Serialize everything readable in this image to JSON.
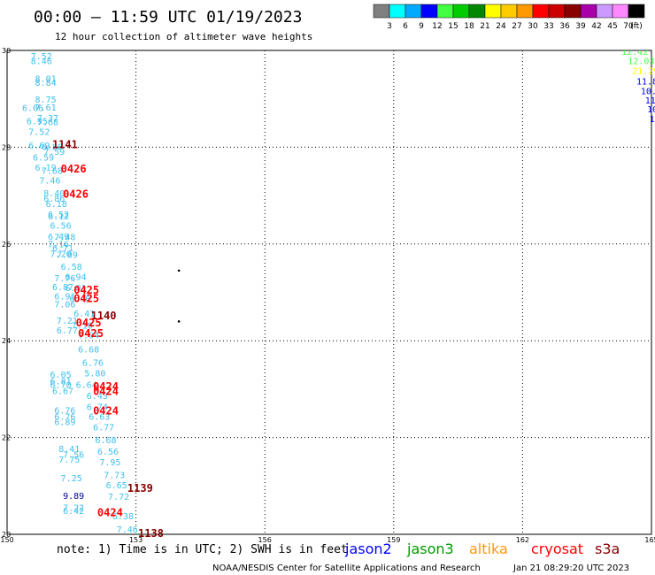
{
  "header": {
    "title": "00:00 — 11:59 UTC 01/19/2023",
    "subtitle": "12 hour collection of altimeter wave heights"
  },
  "colorbar": {
    "colors": [
      "#808080",
      "#00ffff",
      "#00aaff",
      "#0000ff",
      "#44ff44",
      "#00cc00",
      "#008800",
      "#ffff00",
      "#ffcc00",
      "#ff9900",
      "#ff0000",
      "#cc0000",
      "#880000",
      "#aa00aa",
      "#cc99ff",
      "#ff88ff",
      "#000000"
    ],
    "labels": [
      "3",
      "6",
      "9",
      "12",
      "15",
      "18",
      "21",
      "24",
      "27",
      "30",
      "33",
      "36",
      "39",
      "42",
      "45",
      "70",
      "(ft)"
    ]
  },
  "chart_data": {
    "type": "scatter",
    "x_range": [
      150,
      165
    ],
    "y_range": [
      20,
      30
    ],
    "x_ticks": [
      150,
      153,
      156,
      159,
      162,
      165
    ],
    "y_ticks": [
      20,
      22,
      24,
      26,
      28,
      30
    ],
    "x_tick_labels": [
      "150",
      "153",
      "156",
      "159",
      "162",
      "165"
    ],
    "y_tick_labels": [
      "20",
      "22",
      "24",
      "26",
      "28",
      "30"
    ],
    "grid": true,
    "wave_labels": [
      {
        "x": 150.55,
        "y": 29.89,
        "text": "7.52",
        "color": "#3fc0ef"
      },
      {
        "x": 150.55,
        "y": 29.79,
        "text": "8.46",
        "color": "#3fc0ef"
      },
      {
        "x": 150.65,
        "y": 29.42,
        "text": "8.01",
        "color": "#3fc0ef"
      },
      {
        "x": 150.65,
        "y": 29.34,
        "text": "8.84",
        "color": "#3fc0ef"
      },
      {
        "x": 150.65,
        "y": 28.99,
        "text": "8.75",
        "color": "#3fc0ef"
      },
      {
        "x": 150.35,
        "y": 28.82,
        "text": "6.06",
        "color": "#3fc0ef"
      },
      {
        "x": 150.65,
        "y": 28.83,
        "text": "7.61",
        "color": "#3fc0ef"
      },
      {
        "x": 150.7,
        "y": 28.61,
        "text": "7.37",
        "color": "#3fc0ef"
      },
      {
        "x": 150.45,
        "y": 28.55,
        "text": "6.95",
        "color": "#3fc0ef"
      },
      {
        "x": 150.7,
        "y": 28.53,
        "text": "7.68",
        "color": "#3fc0ef"
      },
      {
        "x": 150.5,
        "y": 28.33,
        "text": "7.52",
        "color": "#3fc0ef"
      },
      {
        "x": 150.5,
        "y": 28.04,
        "text": "6.69",
        "color": "#3fc0ef"
      },
      {
        "x": 150.8,
        "y": 28.02,
        "text": "6.86",
        "color": "#3fc0ef"
      },
      {
        "x": 150.6,
        "y": 27.8,
        "text": "6.59",
        "color": "#3fc0ef"
      },
      {
        "x": 150.85,
        "y": 27.92,
        "text": "7.59",
        "color": "#3fc0ef"
      },
      {
        "x": 150.65,
        "y": 27.59,
        "text": "6.19",
        "color": "#3fc0ef"
      },
      {
        "x": 150.8,
        "y": 27.52,
        "text": "7.68",
        "color": "#3fc0ef"
      },
      {
        "x": 150.75,
        "y": 27.32,
        "text": "7.46",
        "color": "#3fc0ef"
      },
      {
        "x": 150.85,
        "y": 27.06,
        "text": "8.40",
        "color": "#3fc0ef"
      },
      {
        "x": 150.85,
        "y": 26.95,
        "text": "6.86",
        "color": "#3fc0ef"
      },
      {
        "x": 150.9,
        "y": 26.84,
        "text": "6.18",
        "color": "#3fc0ef"
      },
      {
        "x": 150.95,
        "y": 26.62,
        "text": "6.52",
        "color": "#3fc0ef"
      },
      {
        "x": 150.95,
        "y": 26.58,
        "text": "6.12",
        "color": "#3fc0ef"
      },
      {
        "x": 151.0,
        "y": 26.39,
        "text": "6.56",
        "color": "#3fc0ef"
      },
      {
        "x": 150.95,
        "y": 26.16,
        "text": "6.49",
        "color": "#3fc0ef"
      },
      {
        "x": 151.1,
        "y": 26.15,
        "text": "7.48",
        "color": "#3fc0ef"
      },
      {
        "x": 150.95,
        "y": 26.01,
        "text": "7.16",
        "color": "#3fc0ef"
      },
      {
        "x": 151.05,
        "y": 25.92,
        "text": "6.71",
        "color": "#3fc0ef"
      },
      {
        "x": 151.0,
        "y": 25.8,
        "text": "7.20",
        "color": "#3fc0ef"
      },
      {
        "x": 151.15,
        "y": 25.79,
        "text": "7.09",
        "color": "#3fc0ef"
      },
      {
        "x": 151.25,
        "y": 25.54,
        "text": "6.58",
        "color": "#3fc0ef"
      },
      {
        "x": 151.1,
        "y": 25.3,
        "text": "7.76",
        "color": "#3fc0ef"
      },
      {
        "x": 151.35,
        "y": 25.33,
        "text": "6.94",
        "color": "#3fc0ef"
      },
      {
        "x": 151.05,
        "y": 25.12,
        "text": "6.87",
        "color": "#3fc0ef"
      },
      {
        "x": 151.35,
        "y": 25.1,
        "text": "6.91",
        "color": "#3fc0ef"
      },
      {
        "x": 151.1,
        "y": 24.93,
        "text": "6.91",
        "color": "#3fc0ef"
      },
      {
        "x": 151.45,
        "y": 24.88,
        "text": "6.40",
        "color": "#3fc0ef"
      },
      {
        "x": 151.1,
        "y": 24.76,
        "text": "7.06",
        "color": "#3fc0ef"
      },
      {
        "x": 151.55,
        "y": 24.57,
        "text": "6.41",
        "color": "#3fc0ef"
      },
      {
        "x": 151.15,
        "y": 24.42,
        "text": "7.21",
        "color": "#3fc0ef"
      },
      {
        "x": 151.5,
        "y": 24.32,
        "text": "7.10",
        "color": "#3fc0ef"
      },
      {
        "x": 151.15,
        "y": 24.22,
        "text": "6.77",
        "color": "#3fc0ef"
      },
      {
        "x": 151.65,
        "y": 24.12,
        "text": "7.04",
        "color": "#3fc0ef"
      },
      {
        "x": 151.65,
        "y": 23.83,
        "text": "6.68",
        "color": "#3fc0ef"
      },
      {
        "x": 151.75,
        "y": 23.56,
        "text": "6.76",
        "color": "#3fc0ef"
      },
      {
        "x": 151.0,
        "y": 23.31,
        "text": "6.05",
        "color": "#3fc0ef"
      },
      {
        "x": 151.8,
        "y": 23.34,
        "text": "5.80",
        "color": "#3fc0ef"
      },
      {
        "x": 151.0,
        "y": 23.17,
        "text": "6.81",
        "color": "#3fc0ef"
      },
      {
        "x": 151.0,
        "y": 23.1,
        "text": "6.70",
        "color": "#3fc0ef"
      },
      {
        "x": 151.6,
        "y": 23.1,
        "text": "6.64",
        "color": "#3fc0ef"
      },
      {
        "x": 151.05,
        "y": 22.97,
        "text": "6.67",
        "color": "#3fc0ef"
      },
      {
        "x": 151.85,
        "y": 22.87,
        "text": "6.43",
        "color": "#3fc0ef"
      },
      {
        "x": 151.85,
        "y": 22.64,
        "text": "6.74",
        "color": "#3fc0ef"
      },
      {
        "x": 151.1,
        "y": 22.57,
        "text": "6.76",
        "color": "#3fc0ef"
      },
      {
        "x": 151.1,
        "y": 22.44,
        "text": "6.76",
        "color": "#3fc0ef"
      },
      {
        "x": 151.9,
        "y": 22.44,
        "text": "6.63",
        "color": "#3fc0ef"
      },
      {
        "x": 151.1,
        "y": 22.33,
        "text": "6.89",
        "color": "#3fc0ef"
      },
      {
        "x": 152.0,
        "y": 22.22,
        "text": "6.77",
        "color": "#3fc0ef"
      },
      {
        "x": 152.05,
        "y": 21.96,
        "text": "6.68",
        "color": "#3fc0ef"
      },
      {
        "x": 151.2,
        "y": 21.77,
        "text": "8.41",
        "color": "#3fc0ef"
      },
      {
        "x": 152.1,
        "y": 21.72,
        "text": "6.56",
        "color": "#3fc0ef"
      },
      {
        "x": 151.3,
        "y": 21.65,
        "text": "7.56",
        "color": "#3fc0ef"
      },
      {
        "x": 151.2,
        "y": 21.55,
        "text": "7.75",
        "color": "#3fc0ef"
      },
      {
        "x": 152.15,
        "y": 21.5,
        "text": "7.95",
        "color": "#3fc0ef"
      },
      {
        "x": 152.25,
        "y": 21.23,
        "text": "7.73",
        "color": "#3fc0ef"
      },
      {
        "x": 151.25,
        "y": 21.17,
        "text": "7.25",
        "color": "#3fc0ef"
      },
      {
        "x": 152.3,
        "y": 21.02,
        "text": "6.65",
        "color": "#3fc0ef"
      },
      {
        "x": 151.3,
        "y": 20.8,
        "text": "9.89",
        "color": "#00009e"
      },
      {
        "x": 152.35,
        "y": 20.79,
        "text": "7.72",
        "color": "#3fc0ef"
      },
      {
        "x": 151.3,
        "y": 20.56,
        "text": "7.22",
        "color": "#3fc0ef"
      },
      {
        "x": 151.3,
        "y": 20.49,
        "text": "6.42",
        "color": "#3fc0ef"
      },
      {
        "x": 152.45,
        "y": 20.38,
        "text": "6.38",
        "color": "#3fc0ef"
      },
      {
        "x": 152.55,
        "y": 20.11,
        "text": "7.46",
        "color": "#3fc0ef"
      },
      {
        "x": 164.3,
        "y": 29.98,
        "text": "12.42",
        "color": "#44ff44"
      },
      {
        "x": 164.45,
        "y": 29.79,
        "text": "12.03",
        "color": "#44ff44"
      },
      {
        "x": 164.55,
        "y": 29.59,
        "text": "21.29",
        "color": "#ffff00"
      },
      {
        "x": 164.65,
        "y": 29.37,
        "text": "11.81",
        "color": "#0000ff"
      },
      {
        "x": 164.75,
        "y": 29.17,
        "text": "10.6",
        "color": "#0000ff"
      },
      {
        "x": 164.85,
        "y": 28.98,
        "text": "11.0",
        "color": "#0000ff"
      },
      {
        "x": 164.9,
        "y": 28.79,
        "text": "10",
        "color": "#0000ff"
      },
      {
        "x": 164.95,
        "y": 28.59,
        "text": "10",
        "color": "#0000ff"
      }
    ],
    "time_labels": [
      {
        "x": 151.05,
        "y": 28.05,
        "text": "1141",
        "color": "#880000"
      },
      {
        "x": 151.25,
        "y": 27.55,
        "text": "0426",
        "color": "#ff0000"
      },
      {
        "x": 151.3,
        "y": 27.03,
        "text": "0426",
        "color": "#ff0000"
      },
      {
        "x": 151.55,
        "y": 25.05,
        "text": "0425",
        "color": "#ff0000"
      },
      {
        "x": 151.55,
        "y": 24.87,
        "text": "0425",
        "color": "#ff0000"
      },
      {
        "x": 151.95,
        "y": 24.52,
        "text": "1140",
        "color": "#880000"
      },
      {
        "x": 151.6,
        "y": 24.37,
        "text": "0425",
        "color": "#ff0000"
      },
      {
        "x": 151.65,
        "y": 24.15,
        "text": "0425",
        "color": "#ff0000"
      },
      {
        "x": 152.0,
        "y": 23.05,
        "text": "0424",
        "color": "#ff0000"
      },
      {
        "x": 152.0,
        "y": 22.95,
        "text": "0424",
        "color": "#ff0000"
      },
      {
        "x": 152.0,
        "y": 22.55,
        "text": "0424",
        "color": "#ff0000"
      },
      {
        "x": 152.8,
        "y": 20.95,
        "text": "1139",
        "color": "#880000"
      },
      {
        "x": 152.1,
        "y": 20.45,
        "text": "0424",
        "color": "#ff0000"
      },
      {
        "x": 153.05,
        "y": 20.02,
        "text": "1138",
        "color": "#880000"
      }
    ],
    "dots": [
      {
        "x": 154.0,
        "y": 25.45
      },
      {
        "x": 154.0,
        "y": 24.4
      }
    ]
  },
  "legend": {
    "note": "note: 1) Time is in UTC; 2) SWH is in feet",
    "satellites": [
      {
        "name": "jason2",
        "color": "#0000ff"
      },
      {
        "name": "jason3",
        "color": "#009900"
      },
      {
        "name": "altika",
        "color": "#ff9900"
      },
      {
        "name": "cryosat",
        "color": "#ff0000"
      },
      {
        "name": "s3a",
        "color": "#880000"
      }
    ]
  },
  "footer": {
    "credit": "NOAA/NESDIS Center for Satellite Applications and Research",
    "timestamp": "Jan 21 08:29:20 UTC 2023"
  }
}
